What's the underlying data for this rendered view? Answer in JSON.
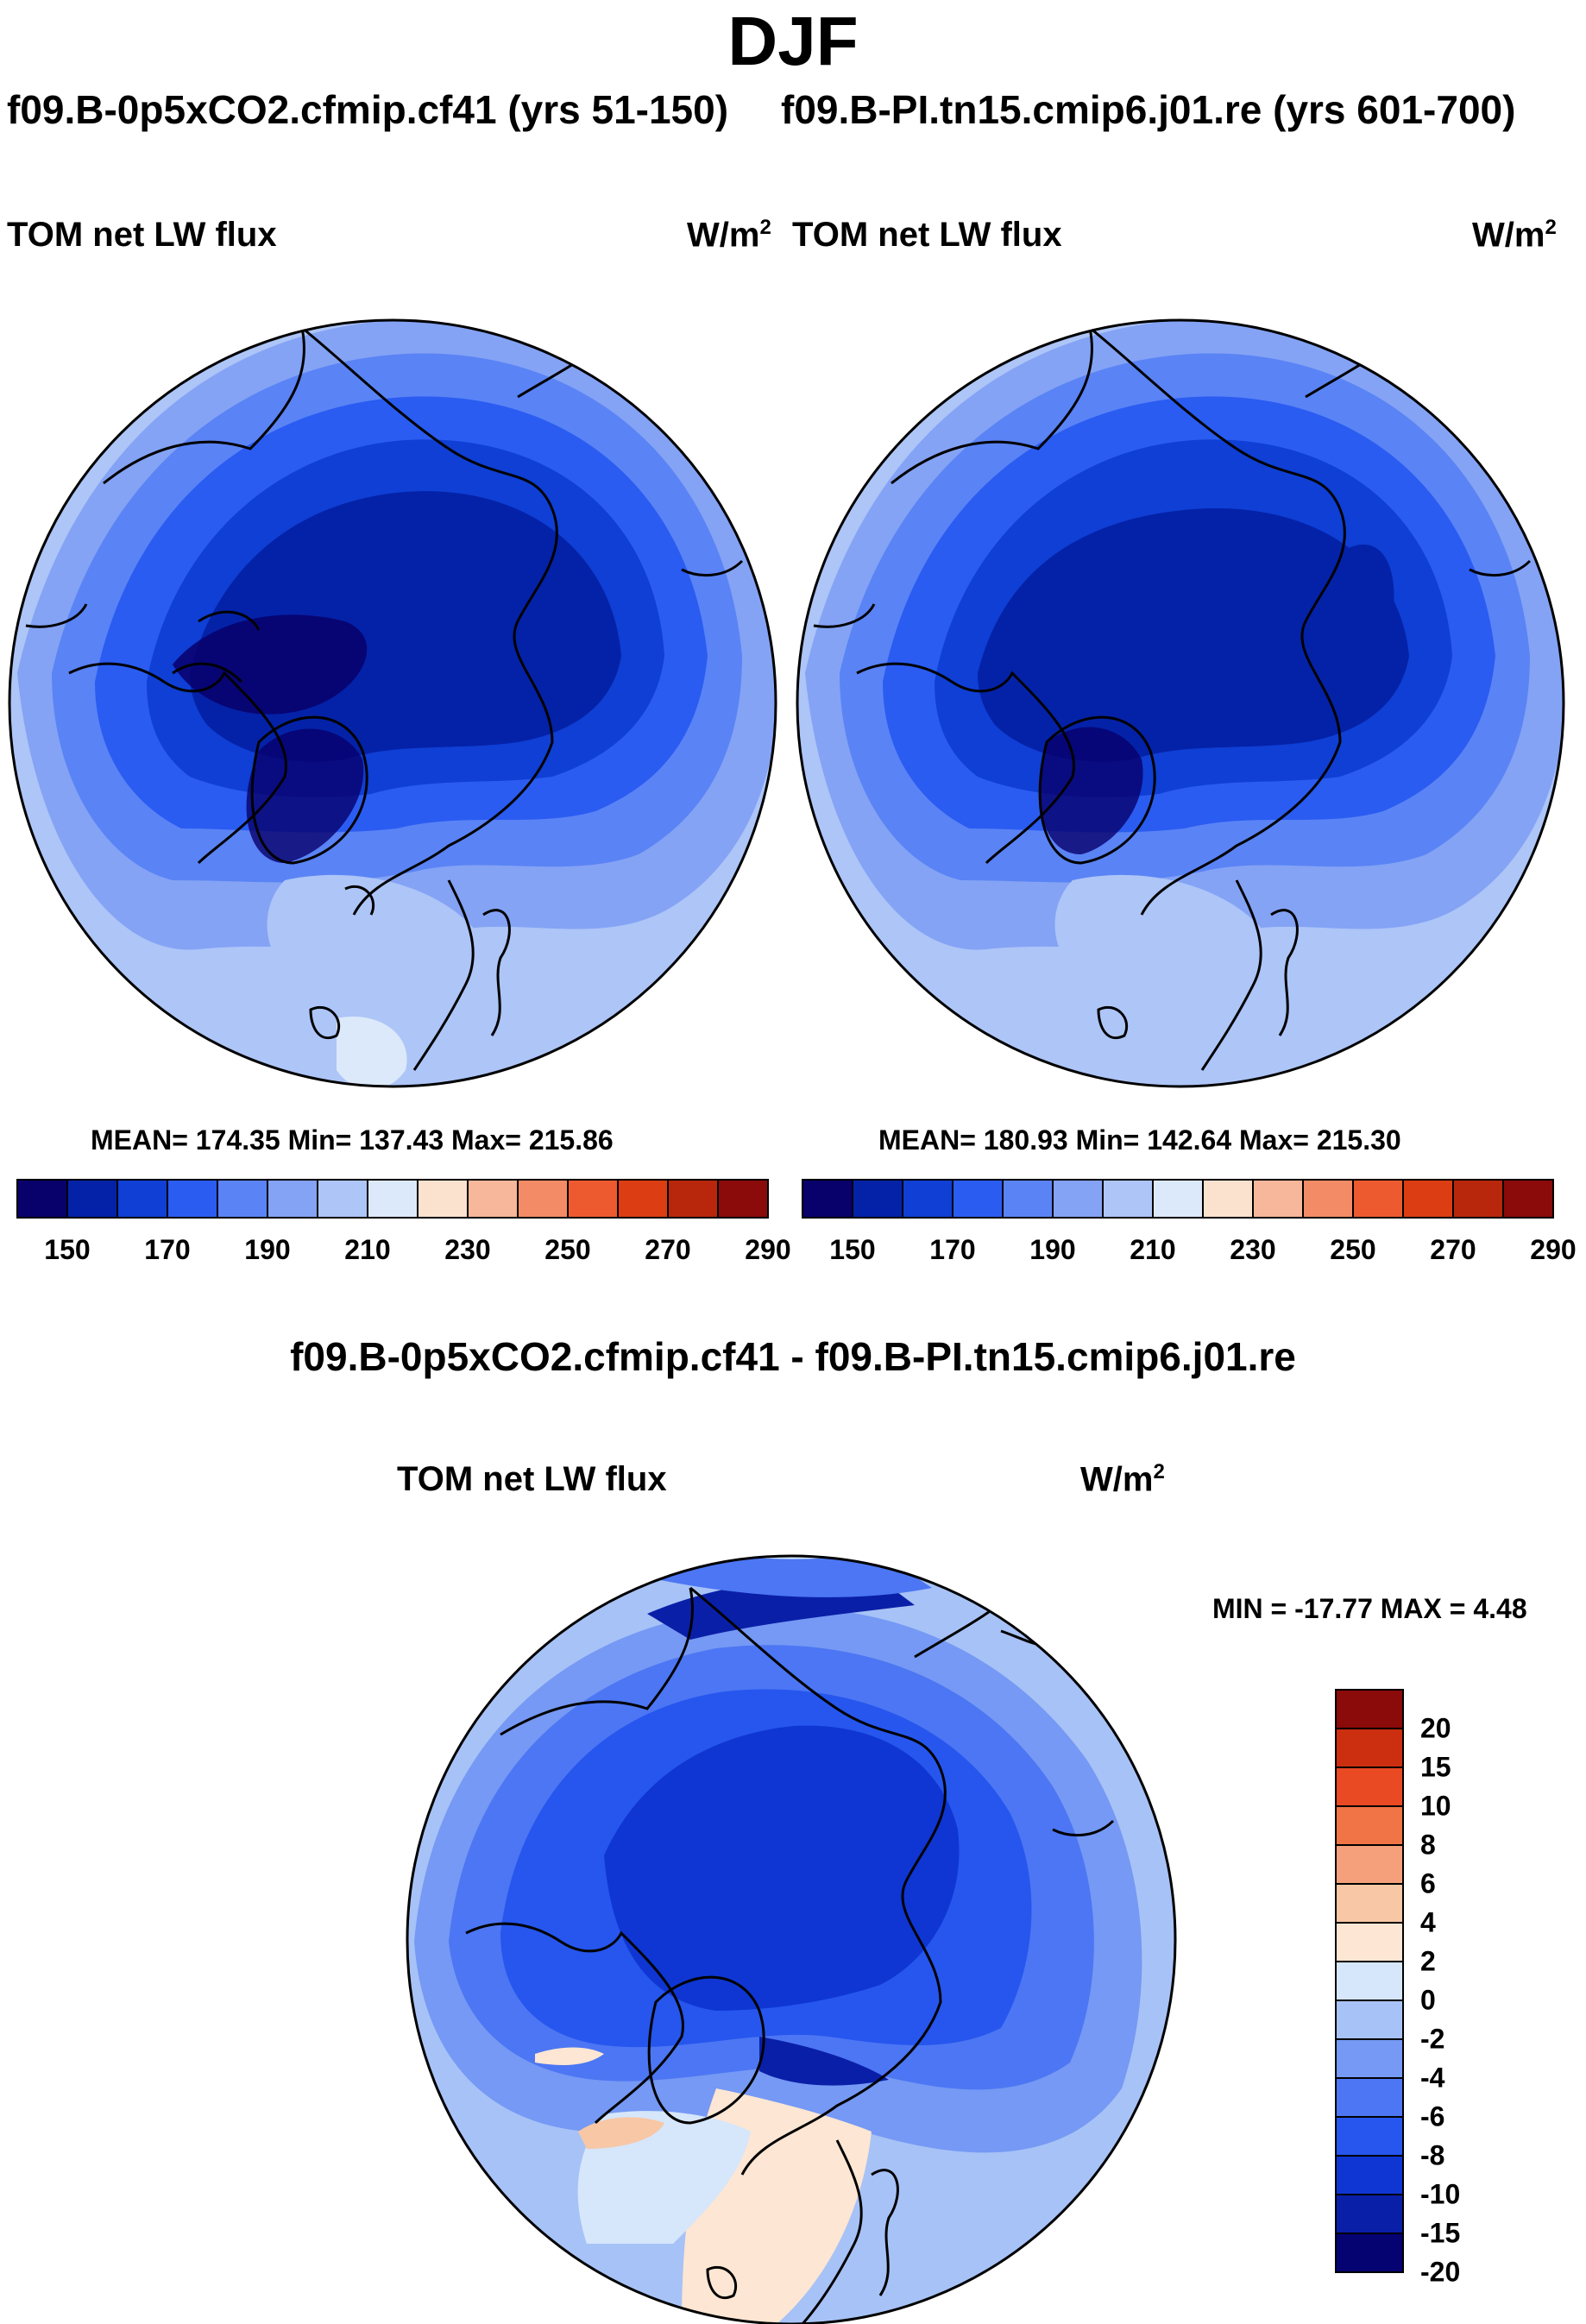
{
  "title": "DJF",
  "left_case": "f09.B-0p5xCO2.cfmip.cf41 (yrs 51-150)",
  "right_case": "f09.B-PI.tn15.cmip6.j01.re (yrs 601-700)",
  "panels": [
    {
      "variable": "TOM net LW flux",
      "units_base": "W/m",
      "units_exp": "2",
      "stats": "MEAN= 174.35  Min= 137.43  Max= 215.86"
    },
    {
      "variable": "TOM net LW flux",
      "units_base": "W/m",
      "units_exp": "2",
      "stats": "MEAN= 180.93  Min= 142.64  Max= 215.30"
    }
  ],
  "diff": {
    "title": "f09.B-0p5xCO2.cfmip.cf41 - f09.B-PI.tn15.cmip6.j01.re",
    "variable": "TOM net LW flux",
    "units_base": "W/m",
    "units_exp": "2",
    "minmax": "MIN = -17.77 MAX =    4.48"
  },
  "colors": {
    "abs_scale": [
      "#08006b",
      "#0422a8",
      "#0f3fd4",
      "#2a5cf2",
      "#5a83f5",
      "#84a3f5",
      "#adc5f7",
      "#dce9fa",
      "#fbe2cf",
      "#f7b79a",
      "#f38c66",
      "#ee5a30",
      "#dc3d12",
      "#b8270b",
      "#8b0a0a"
    ],
    "diff_scale": [
      "#050272",
      "#0a1fa8",
      "#0f36d3",
      "#2656ee",
      "#4c76f3",
      "#7599f4",
      "#a7c2f6",
      "#d6e6fb",
      "#fde6d3",
      "#f8c7a5",
      "#f5a07a",
      "#f07446",
      "#e94a23",
      "#cc2f10",
      "#8b0a0a"
    ]
  },
  "chart_data": [
    {
      "type": "heatmap",
      "title": "TOM net LW flux",
      "subtitle": "f09.B-0p5xCO2.cfmip.cf41 (yrs 51-150)",
      "units": "W/m2",
      "projection": "north-polar-stereographic",
      "mean": 174.35,
      "min": 137.43,
      "max": 215.86,
      "colorbar_ticks": [
        150,
        170,
        190,
        210,
        230,
        250,
        270,
        290
      ],
      "levels": [
        140,
        150,
        160,
        170,
        180,
        190,
        200,
        210,
        220,
        230,
        240,
        250,
        260,
        270,
        280,
        290
      ]
    },
    {
      "type": "heatmap",
      "title": "TOM net LW flux",
      "subtitle": "f09.B-PI.tn15.cmip6.j01.re (yrs 601-700)",
      "units": "W/m2",
      "projection": "north-polar-stereographic",
      "mean": 180.93,
      "min": 142.64,
      "max": 215.3,
      "colorbar_ticks": [
        150,
        170,
        190,
        210,
        230,
        250,
        270,
        290
      ],
      "levels": [
        140,
        150,
        160,
        170,
        180,
        190,
        200,
        210,
        220,
        230,
        240,
        250,
        260,
        270,
        280,
        290
      ]
    },
    {
      "type": "heatmap",
      "title": "TOM net LW flux",
      "subtitle": "f09.B-0p5xCO2.cfmip.cf41 - f09.B-PI.tn15.cmip6.j01.re",
      "units": "W/m2",
      "projection": "north-polar-stereographic",
      "min": -17.77,
      "max": 4.48,
      "colorbar_ticks": [
        20,
        15,
        10,
        8,
        6,
        4,
        2,
        0,
        -2,
        -4,
        -6,
        -8,
        -10,
        -15,
        -20
      ]
    }
  ]
}
